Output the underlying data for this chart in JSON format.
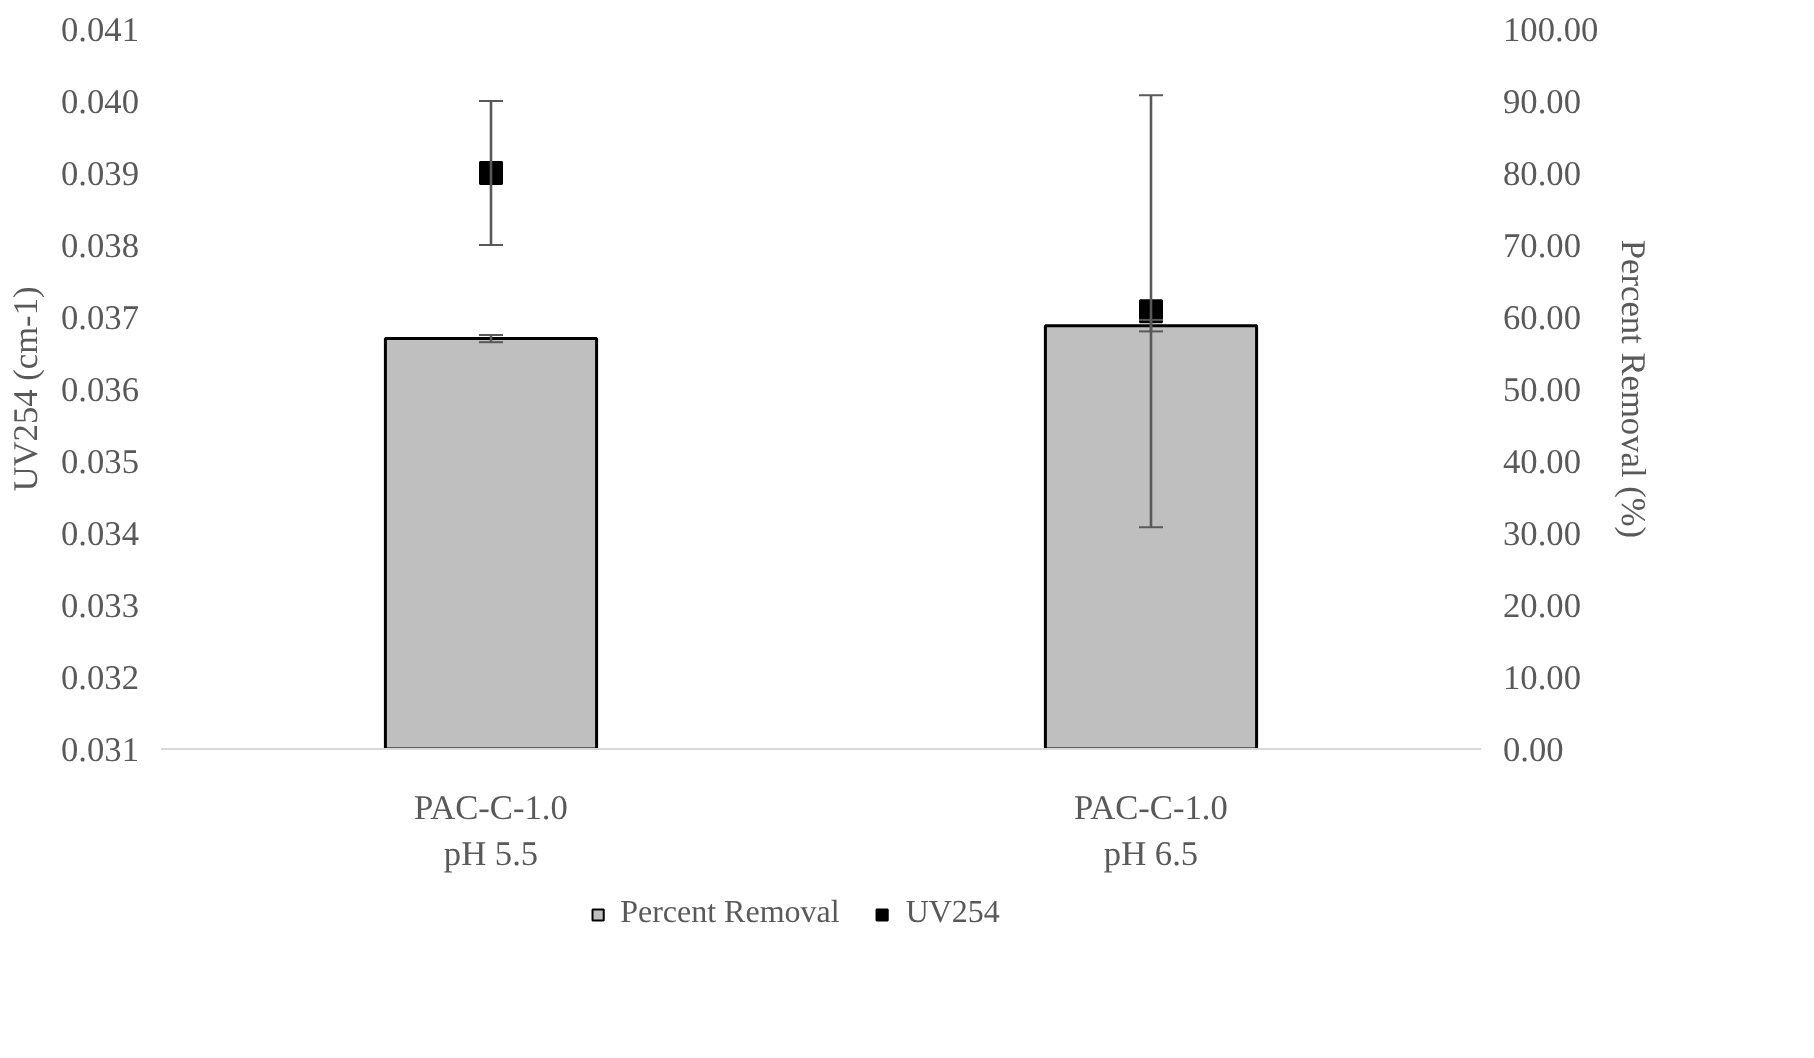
{
  "chart_data": {
    "type": "bar",
    "categories": [
      "PAC-C-1.0\npH 5.5",
      "PAC-C-1.0\npH 6.5"
    ],
    "ylabel": "UV254 (cm-1)",
    "y2label": "Percent Removal (%)",
    "ylim": [
      0.031,
      0.041
    ],
    "yticks": [
      {
        "value": 0.031,
        "label": "0.031"
      },
      {
        "value": 0.032,
        "label": "0.032"
      },
      {
        "value": 0.033,
        "label": "0.033"
      },
      {
        "value": 0.034,
        "label": "0.034"
      },
      {
        "value": 0.035,
        "label": "0.035"
      },
      {
        "value": 0.036,
        "label": "0.036"
      },
      {
        "value": 0.037,
        "label": "0.037"
      },
      {
        "value": 0.038,
        "label": "0.038"
      },
      {
        "value": 0.039,
        "label": "0.039"
      },
      {
        "value": 0.04,
        "label": "0.040"
      },
      {
        "value": 0.041,
        "label": "0.041"
      }
    ],
    "y2lim": [
      0,
      100
    ],
    "y2ticks": [
      {
        "value": 0,
        "label": "0.00"
      },
      {
        "value": 10,
        "label": "10.00"
      },
      {
        "value": 20,
        "label": "20.00"
      },
      {
        "value": 30,
        "label": "30.00"
      },
      {
        "value": 40,
        "label": "40.00"
      },
      {
        "value": 50,
        "label": "50.00"
      },
      {
        "value": 60,
        "label": "60.00"
      },
      {
        "value": 70,
        "label": "70.00"
      },
      {
        "value": 80,
        "label": "80.00"
      },
      {
        "value": 90,
        "label": "90.00"
      },
      {
        "value": 100,
        "label": "100.00"
      }
    ],
    "series": [
      {
        "name": "Percent Removal",
        "axis": "y2",
        "color": "#bfbfbf",
        "values": [
          57.0,
          58.8
        ],
        "errors": [
          0.5,
          0.8
        ]
      },
      {
        "name": "UV254",
        "type": "scatter",
        "axis": "y",
        "color": "#000000",
        "marker": "square",
        "values": [
          0.039,
          0.03708
        ],
        "errors": [
          0.001,
          0.003
        ]
      }
    ],
    "legend": "bottom",
    "grid": false
  }
}
